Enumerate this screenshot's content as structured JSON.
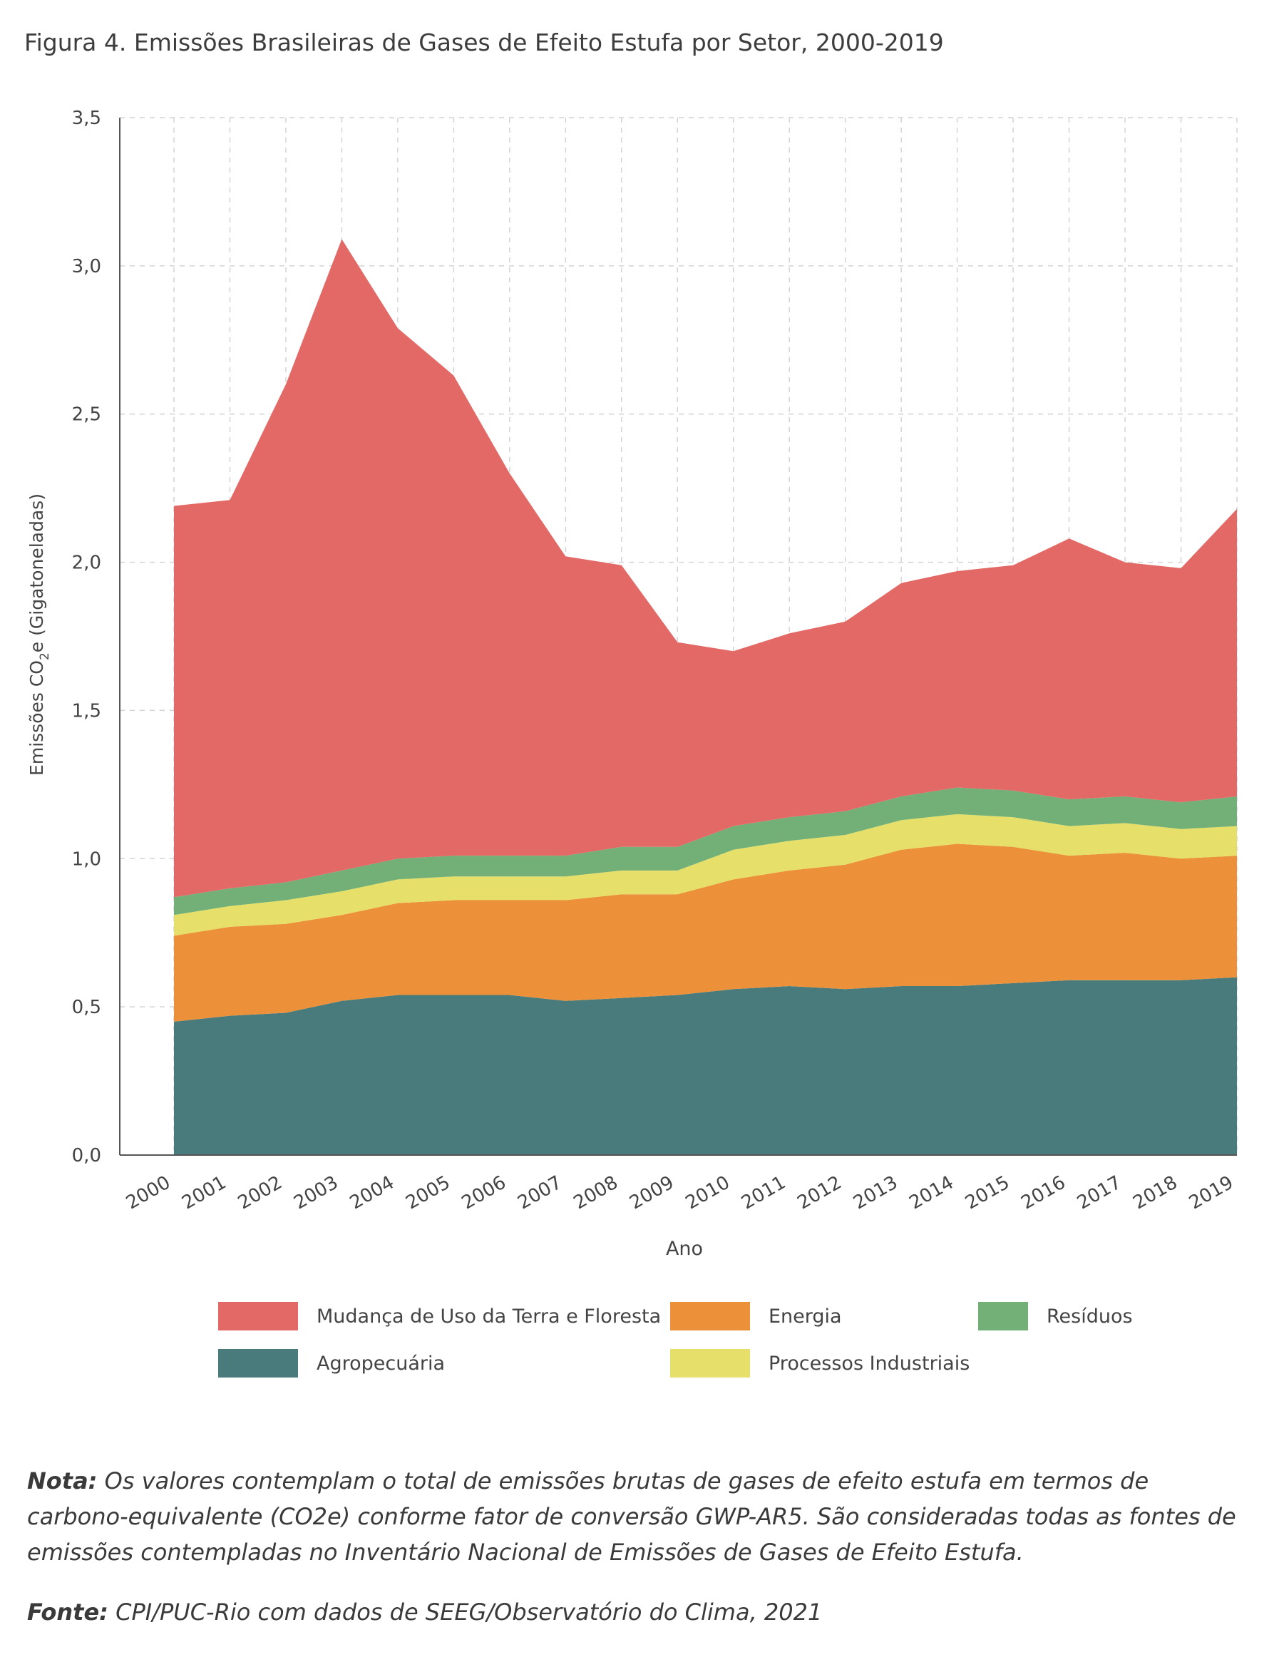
{
  "title": "Figura 4. Emissões Brasileiras de Gases de Efeito Estufa por Setor, 2000-2019",
  "chart_data": {
    "type": "area",
    "stacked": true,
    "xlabel": "Ano",
    "ylabel_main": "Emissões CO",
    "ylabel_sub": "2",
    "ylabel_tail": "e  (Gigatoneladas)",
    "ylim": [
      0,
      3.5
    ],
    "yticks": [
      "0,0",
      "0,5",
      "1,0",
      "1,5",
      "2,0",
      "2,5",
      "3,0",
      "3,5"
    ],
    "grid": "dashed",
    "x": [
      "2000",
      "2001",
      "2002",
      "2003",
      "2004",
      "2005",
      "2006",
      "2007",
      "2008",
      "2009",
      "2010",
      "2011",
      "2012",
      "2013",
      "2014",
      "2015",
      "2016",
      "2017",
      "2018",
      "2019"
    ],
    "series": [
      {
        "name": "Agropecuária",
        "color": "#4a7b7c",
        "values": [
          0.45,
          0.47,
          0.48,
          0.52,
          0.54,
          0.54,
          0.54,
          0.52,
          0.53,
          0.54,
          0.56,
          0.57,
          0.56,
          0.57,
          0.57,
          0.58,
          0.59,
          0.59,
          0.59,
          0.6
        ]
      },
      {
        "name": "Energia",
        "color": "#ec9139",
        "values": [
          0.29,
          0.3,
          0.3,
          0.29,
          0.31,
          0.32,
          0.32,
          0.34,
          0.35,
          0.34,
          0.37,
          0.39,
          0.42,
          0.46,
          0.48,
          0.46,
          0.42,
          0.43,
          0.41,
          0.41
        ]
      },
      {
        "name": "Processos Industriais",
        "color": "#e6e06a",
        "values": [
          0.07,
          0.07,
          0.08,
          0.08,
          0.08,
          0.08,
          0.08,
          0.08,
          0.08,
          0.08,
          0.1,
          0.1,
          0.1,
          0.1,
          0.1,
          0.1,
          0.1,
          0.1,
          0.1,
          0.1
        ]
      },
      {
        "name": "Resíduos",
        "color": "#72b077",
        "values": [
          0.06,
          0.06,
          0.06,
          0.07,
          0.07,
          0.07,
          0.07,
          0.07,
          0.08,
          0.08,
          0.08,
          0.08,
          0.08,
          0.08,
          0.09,
          0.09,
          0.09,
          0.09,
          0.09,
          0.1
        ]
      },
      {
        "name": "Mudança de Uso da Terra e Floresta",
        "color": "#e36966",
        "values": [
          1.32,
          1.31,
          1.68,
          2.13,
          1.79,
          1.62,
          1.29,
          1.01,
          0.95,
          0.69,
          0.59,
          0.62,
          0.64,
          0.72,
          0.73,
          0.76,
          0.88,
          0.79,
          0.79,
          0.97
        ]
      }
    ]
  },
  "legend": [
    {
      "name": "Mudança de Uso da Terra e Floresta",
      "color": "#e36966"
    },
    {
      "name": "Energia",
      "color": "#ec9139"
    },
    {
      "name": "Resíduos",
      "color": "#72b077"
    },
    {
      "name": "Agropecuária",
      "color": "#4a7b7c"
    },
    {
      "name": "Processos Industriais",
      "color": "#e6e06a"
    }
  ],
  "note": {
    "label": "Nota:",
    "text": " Os valores contemplam o total de emissões brutas de gases de efeito estufa em termos de carbono-equivalente (CO2e) conforme fator de conversão GWP-AR5. São consideradas todas as fontes de emissões contempladas no Inventário Nacional de Emissões de Gases de Efeito Estufa."
  },
  "source": {
    "label": "Fonte:",
    "text": " CPI/PUC-Rio com dados de SEEG/Observatório do Clima, 2021"
  }
}
